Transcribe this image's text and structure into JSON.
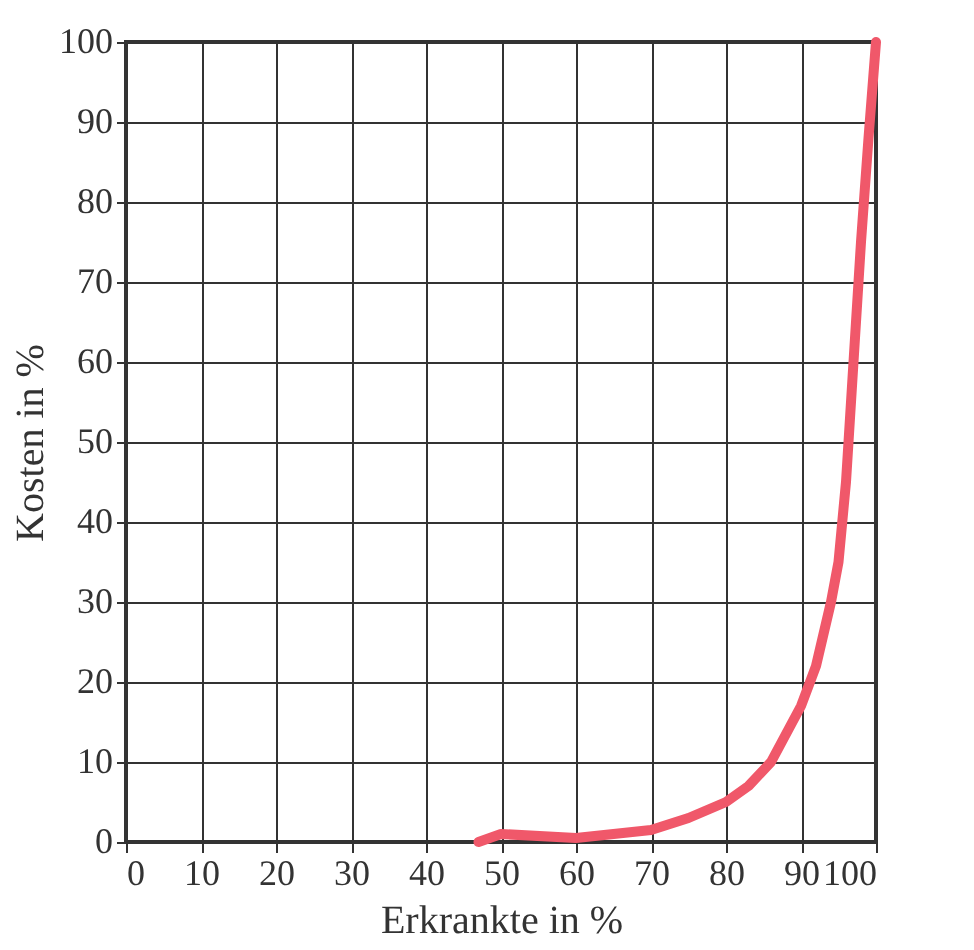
{
  "chart_data": {
    "type": "line",
    "xlabel": "Erkrankte in %",
    "ylabel": "Kosten in %",
    "series": [
      {
        "color": "#f0586a",
        "x": [
          47,
          50,
          60,
          70,
          75,
          80,
          83,
          86,
          90,
          92,
          94,
          95,
          96,
          97,
          98,
          99,
          100
        ],
        "values": [
          0,
          1,
          0.5,
          1.5,
          3,
          5,
          7,
          10,
          17,
          22,
          30,
          35,
          45,
          60,
          75,
          88,
          100
        ]
      }
    ],
    "xlim": [
      0,
      100
    ],
    "ylim": [
      0,
      100
    ],
    "xticks": [
      0,
      10,
      20,
      30,
      40,
      50,
      60,
      70,
      80,
      90,
      100
    ],
    "yticks": [
      0,
      10,
      20,
      30,
      40,
      50,
      60,
      70,
      80,
      90,
      100
    ],
    "grid": true,
    "marker": "none",
    "line_style": "solid"
  }
}
